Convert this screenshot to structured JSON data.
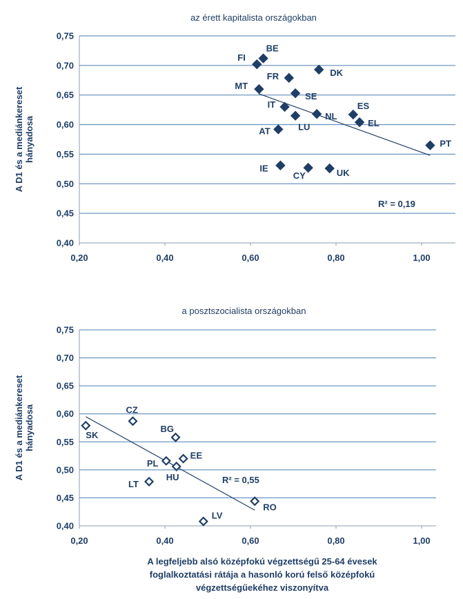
{
  "chart_data": [
    {
      "type": "scatter",
      "title": "az érett kapitalista országokban",
      "ylabel": [
        "A D1 és a mediánkereset",
        "hányadosa"
      ],
      "xlim": [
        0.2,
        1.1
      ],
      "ylim": [
        0.4,
        0.75
      ],
      "x_ticks": [
        "0,20",
        "0,40",
        "0,60",
        "0,80",
        "1,00"
      ],
      "y_ticks": [
        "0,40",
        "0,45",
        "0,50",
        "0,55",
        "0,60",
        "0,65",
        "0,70",
        "0,75"
      ],
      "grid": true,
      "marker": "filled-diamond",
      "points": [
        {
          "label": "FI",
          "x": 0.615,
          "y": 0.702
        },
        {
          "label": "BE",
          "x": 0.63,
          "y": 0.712
        },
        {
          "label": "DK",
          "x": 0.76,
          "y": 0.693
        },
        {
          "label": "FR",
          "x": 0.69,
          "y": 0.679
        },
        {
          "label": "MT",
          "x": 0.62,
          "y": 0.66
        },
        {
          "label": "SE",
          "x": 0.705,
          "y": 0.653
        },
        {
          "label": "IT",
          "x": 0.68,
          "y": 0.63
        },
        {
          "label": "LU",
          "x": 0.705,
          "y": 0.615
        },
        {
          "label": "NL",
          "x": 0.755,
          "y": 0.618
        },
        {
          "label": "ES",
          "x": 0.84,
          "y": 0.617
        },
        {
          "label": "EL",
          "x": 0.855,
          "y": 0.604
        },
        {
          "label": "AT",
          "x": 0.665,
          "y": 0.592
        },
        {
          "label": "PT",
          "x": 1.02,
          "y": 0.565
        },
        {
          "label": "IE",
          "x": 0.67,
          "y": 0.531
        },
        {
          "label": "CY",
          "x": 0.735,
          "y": 0.527
        },
        {
          "label": "UK",
          "x": 0.785,
          "y": 0.526
        }
      ],
      "trendline": {
        "x": [
          0.62,
          1.02
        ],
        "y": [
          0.652,
          0.548
        ]
      },
      "r2_label": "R² = 0,19"
    },
    {
      "type": "scatter",
      "title": "a posztszocialista országokban",
      "ylabel": [
        "A D1 és a mediánkereset",
        "hányadosa"
      ],
      "xlim": [
        0.2,
        1.0
      ],
      "ylim": [
        0.4,
        0.75
      ],
      "x_ticks": [
        "0,20",
        "0,40",
        "0,60",
        "0,80",
        "1,00"
      ],
      "y_ticks": [
        "0,40",
        "0,45",
        "0,50",
        "0,55",
        "0,60",
        "0,65",
        "0,70",
        "0,75"
      ],
      "grid": true,
      "marker": "hollow-diamond",
      "points": [
        {
          "label": "SK",
          "x": 0.215,
          "y": 0.579
        },
        {
          "label": "CZ",
          "x": 0.325,
          "y": 0.587
        },
        {
          "label": "BG",
          "x": 0.425,
          "y": 0.558
        },
        {
          "label": "PL",
          "x": 0.403,
          "y": 0.516
        },
        {
          "label": "EE",
          "x": 0.443,
          "y": 0.52
        },
        {
          "label": "HU",
          "x": 0.427,
          "y": 0.506
        },
        {
          "label": "LT",
          "x": 0.363,
          "y": 0.479
        },
        {
          "label": "RO",
          "x": 0.61,
          "y": 0.444
        },
        {
          "label": "LV",
          "x": 0.49,
          "y": 0.408
        }
      ],
      "trendline": {
        "x": [
          0.215,
          0.61
        ],
        "y": [
          0.595,
          0.428
        ]
      },
      "r2_label": "R² = 0,55",
      "xlabel": [
        "A legfeljebb alsó középfokú végzettségű 25-64 évesek",
        "foglalkoztatási rátája a hasonló korú felső középfokú",
        "végzettségűekéhez viszonyítva"
      ]
    }
  ]
}
